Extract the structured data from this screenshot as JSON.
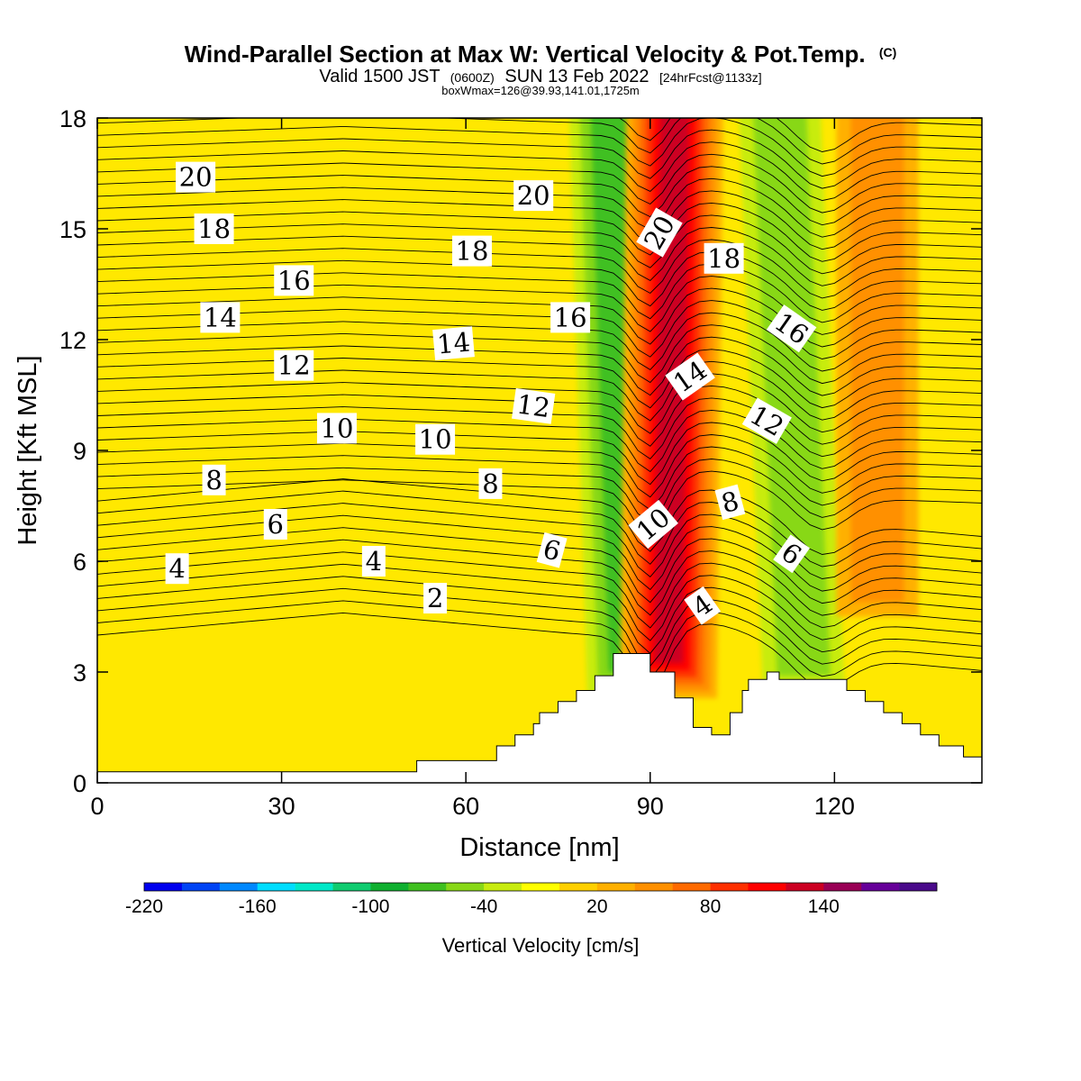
{
  "header": {
    "title": "Wind-Parallel Section at Max W: Vertical Velocity & Pot.Temp.",
    "title_mark": "(C)",
    "valid_prefix": "Valid 1500 JST",
    "valid_utc": "(0600Z)",
    "valid_date": "SUN 13 Feb 2022",
    "forecast": "[24hrFcst@1133z]",
    "box_info": "boxWmax=126@39.93,141.01,1725m"
  },
  "chart_data": {
    "type": "heatmap",
    "xlabel": "Distance [nm]",
    "ylabel": "Height [Kft MSL]",
    "xlim": [
      0,
      144
    ],
    "ylim": [
      0,
      18
    ],
    "x_ticks": [
      0,
      30,
      60,
      90,
      120
    ],
    "y_ticks": [
      0,
      3,
      6,
      9,
      12,
      15,
      18
    ],
    "grid": false,
    "colorbar": {
      "label": "Vertical Velocity [cm/s]",
      "tick_labels": [
        "-220",
        "-160",
        "-100",
        "-40",
        "20",
        "80",
        "140"
      ],
      "tick_values": [
        -220,
        -160,
        -100,
        -40,
        20,
        80,
        140
      ],
      "range": [
        -220,
        200
      ],
      "step": 20,
      "colors": [
        "#0000ee",
        "#0044f5",
        "#0088ff",
        "#00ddff",
        "#00e8c8",
        "#10cc70",
        "#10b030",
        "#40c020",
        "#88d818",
        "#c8ec10",
        "#ffff00",
        "#ffd000",
        "#ffb000",
        "#ff9000",
        "#ff6a00",
        "#ff3000",
        "#ff0000",
        "#cc0022",
        "#990055",
        "#660099",
        "#4a0a8a"
      ]
    },
    "terrain_profile": {
      "x": [
        0,
        52,
        52,
        65,
        65,
        68,
        68,
        71,
        71,
        72,
        72,
        75,
        75,
        78,
        78,
        81,
        81,
        84,
        84,
        90,
        90,
        94,
        94,
        97,
        97,
        100,
        100,
        103,
        103,
        105,
        105,
        106,
        106,
        109,
        109,
        111,
        111,
        122,
        122,
        125,
        125,
        128,
        128,
        131,
        131,
        134,
        134,
        137,
        137,
        141,
        141,
        144
      ],
      "y": [
        0.3,
        0.3,
        0.6,
        0.6,
        1.0,
        1.0,
        1.3,
        1.3,
        1.6,
        1.6,
        1.9,
        1.9,
        2.2,
        2.2,
        2.5,
        2.5,
        2.9,
        2.9,
        3.5,
        3.5,
        3.0,
        3.0,
        2.3,
        2.3,
        1.5,
        1.5,
        1.3,
        1.3,
        1.9,
        1.9,
        2.5,
        2.5,
        2.8,
        2.8,
        3.0,
        3.0,
        2.8,
        2.8,
        2.5,
        2.5,
        2.2,
        2.2,
        1.9,
        1.9,
        1.6,
        1.6,
        1.3,
        1.3,
        1.0,
        1.0,
        0.7,
        0.7
      ]
    },
    "w_field_features": [
      {
        "kind": "downdraft",
        "x_center": 87,
        "x_center_top": 84,
        "min_value": -80
      },
      {
        "kind": "updraft",
        "x_center": 93,
        "x_center_top": 94,
        "max_value": 126
      },
      {
        "kind": "downdraft",
        "x_center": 115,
        "x_center_top": 111,
        "min_value": -60
      },
      {
        "kind": "updraft",
        "x_center": 127,
        "x_center_top": 127,
        "max_value": 60
      }
    ],
    "theta_contour_labels": [
      {
        "text": "20",
        "x": 16,
        "y": 16.4,
        "angle": 0
      },
      {
        "text": "20",
        "x": 71,
        "y": 15.9,
        "angle": 0
      },
      {
        "text": "20",
        "x": 91.5,
        "y": 14.9,
        "angle": -60
      },
      {
        "text": "18",
        "x": 19,
        "y": 15.0,
        "angle": 0
      },
      {
        "text": "18",
        "x": 61,
        "y": 14.4,
        "angle": 0
      },
      {
        "text": "18",
        "x": 102,
        "y": 14.2,
        "angle": 0
      },
      {
        "text": "16",
        "x": 32,
        "y": 13.6,
        "angle": 0
      },
      {
        "text": "16",
        "x": 77,
        "y": 12.6,
        "angle": 0
      },
      {
        "text": "16",
        "x": 113,
        "y": 12.3,
        "angle": 35
      },
      {
        "text": "14",
        "x": 20,
        "y": 12.6,
        "angle": 0
      },
      {
        "text": "14",
        "x": 58,
        "y": 11.9,
        "angle": -5
      },
      {
        "text": "14",
        "x": 96.5,
        "y": 11.0,
        "angle": -35
      },
      {
        "text": "12",
        "x": 32,
        "y": 11.3,
        "angle": 0
      },
      {
        "text": "12",
        "x": 71,
        "y": 10.2,
        "angle": 8
      },
      {
        "text": "12",
        "x": 109,
        "y": 9.8,
        "angle": 30
      },
      {
        "text": "10",
        "x": 39,
        "y": 9.6,
        "angle": 0
      },
      {
        "text": "10",
        "x": 55,
        "y": 9.3,
        "angle": 0
      },
      {
        "text": "10",
        "x": 90.5,
        "y": 7.0,
        "angle": -40
      },
      {
        "text": "8",
        "x": 19,
        "y": 8.2,
        "angle": 0
      },
      {
        "text": "8",
        "x": 64,
        "y": 8.1,
        "angle": 0
      },
      {
        "text": "8",
        "x": 103,
        "y": 7.6,
        "angle": -15
      },
      {
        "text": "6",
        "x": 29,
        "y": 7.0,
        "angle": 0
      },
      {
        "text": "6",
        "x": 74,
        "y": 6.3,
        "angle": 15
      },
      {
        "text": "6",
        "x": 113,
        "y": 6.2,
        "angle": 35
      },
      {
        "text": "4",
        "x": 13,
        "y": 5.8,
        "angle": 0
      },
      {
        "text": "4",
        "x": 45,
        "y": 6.0,
        "angle": 0
      },
      {
        "text": "4",
        "x": 98.5,
        "y": 4.8,
        "angle": -35
      },
      {
        "text": "2",
        "x": 55,
        "y": 5.0,
        "angle": 0
      }
    ]
  }
}
